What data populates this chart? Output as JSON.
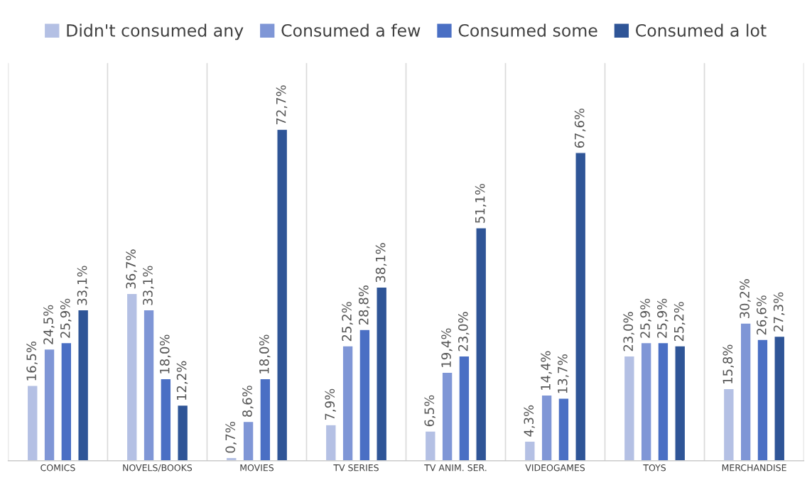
{
  "chart_data": {
    "type": "bar",
    "categories": [
      "COMICS",
      "NOVELS/BOOKS",
      "MOVIES",
      "TV SERIES",
      "TV ANIM. SER.",
      "VIDEOGAMES",
      "TOYS",
      "MERCHANDISE"
    ],
    "series": [
      {
        "name": "Didn't consumed any",
        "color": "#b4c0e4",
        "values": [
          16.5,
          36.7,
          0.7,
          7.9,
          6.5,
          4.3,
          23.0,
          15.8
        ],
        "value_labels": [
          "16,5%",
          "36,7%",
          "0,7%",
          "7,9%",
          "6,5%",
          "4,3%",
          "23,0%",
          "15,8%"
        ]
      },
      {
        "name": "Consumed a few",
        "color": "#7f96d6",
        "values": [
          24.5,
          33.1,
          8.6,
          25.2,
          19.4,
          14.4,
          25.9,
          30.2
        ],
        "value_labels": [
          "24,5%",
          "33,1%",
          "8,6%",
          "25,2%",
          "19,4%",
          "14,4%",
          "25,9%",
          "30,2%"
        ]
      },
      {
        "name": "Consumed some",
        "color": "#4a6fc4",
        "values": [
          25.9,
          18.0,
          18.0,
          28.8,
          23.0,
          13.7,
          25.9,
          26.6
        ],
        "value_labels": [
          "25,9%",
          "18,0%",
          "18,0%",
          "28,8%",
          "23,0%",
          "13,7%",
          "25,9%",
          "26,6%"
        ]
      },
      {
        "name": "Consumed a lot",
        "color": "#2f5597",
        "values": [
          33.1,
          12.2,
          72.7,
          38.1,
          51.1,
          67.6,
          25.2,
          27.3
        ],
        "value_labels": [
          "33,1%",
          "12,2%",
          "72,7%",
          "38,1%",
          "51,1%",
          "67,6%",
          "25,2%",
          "27,3%"
        ]
      }
    ],
    "legend": "top",
    "tick_labels": "x",
    "grid": false
  }
}
